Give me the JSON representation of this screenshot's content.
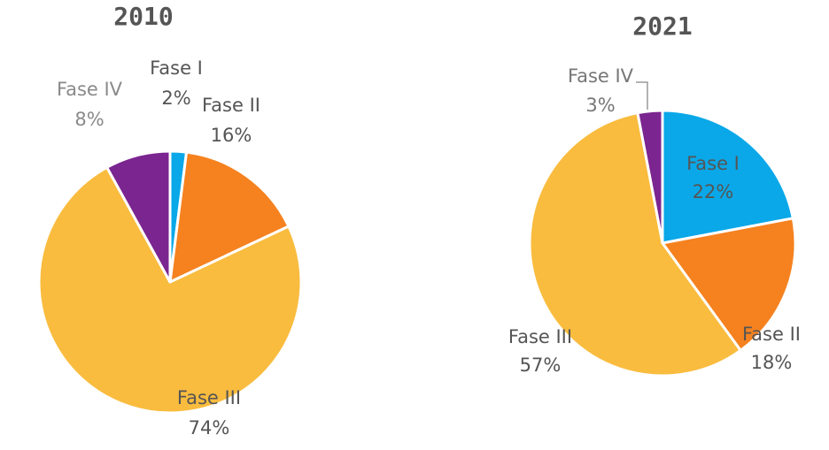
{
  "chart_data": [
    {
      "type": "pie",
      "title": "2010",
      "slices": [
        {
          "label": "Fase I",
          "value": 2,
          "display": "2%",
          "color": "#0aa8e8"
        },
        {
          "label": "Fase II",
          "value": 16,
          "display": "16%",
          "color": "#f5821f"
        },
        {
          "label": "Fase III",
          "value": 74,
          "display": "74%",
          "color": "#f9bc3e"
        },
        {
          "label": "Fase IV",
          "value": 8,
          "display": "8%",
          "color": "#7b2590"
        }
      ]
    },
    {
      "type": "pie",
      "title": "2021",
      "slices": [
        {
          "label": "Fase I",
          "value": 22,
          "display": "22%",
          "color": "#0aa8e8"
        },
        {
          "label": "Fase II",
          "value": 18,
          "display": "18%",
          "color": "#f5821f"
        },
        {
          "label": "Fase III",
          "value": 57,
          "display": "57%",
          "color": "#f9bc3e"
        },
        {
          "label": "Fase IV",
          "value": 3,
          "display": "3%",
          "color": "#7b2590"
        }
      ]
    }
  ]
}
